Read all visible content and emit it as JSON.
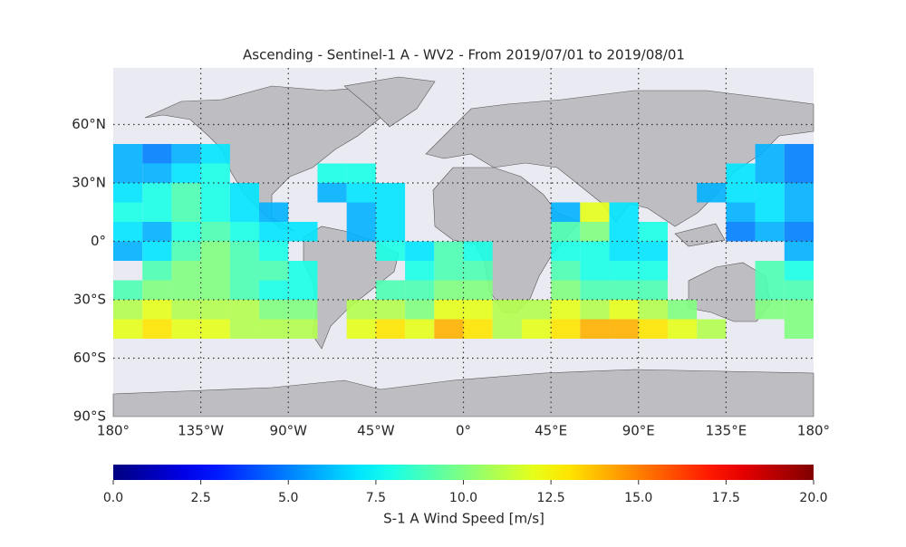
{
  "chart_data": {
    "type": "heatmap",
    "title": "Ascending - Sentinel-1 A - WV2 - From 2019/07/01 to 2019/08/01",
    "colorbar_label": "S-1 A Wind Speed [m/s]",
    "colormap": "jet",
    "clim": [
      0,
      20
    ],
    "cticks": [
      {
        "value": 0,
        "label": "0.0"
      },
      {
        "value": 2.5,
        "label": "2.5"
      },
      {
        "value": 5,
        "label": "5.0"
      },
      {
        "value": 7.5,
        "label": "7.5"
      },
      {
        "value": 10,
        "label": "10.0"
      },
      {
        "value": 12.5,
        "label": "12.5"
      },
      {
        "value": 15,
        "label": "15.0"
      },
      {
        "value": 17.5,
        "label": "17.5"
      },
      {
        "value": 20,
        "label": "20.0"
      }
    ],
    "xlim": [
      -180,
      180
    ],
    "ylim": [
      -90,
      90
    ],
    "xticks": [
      {
        "value": -180,
        "label": "180°"
      },
      {
        "value": -135,
        "label": "135°W"
      },
      {
        "value": -90,
        "label": "90°W"
      },
      {
        "value": -45,
        "label": "45°W"
      },
      {
        "value": 0,
        "label": "0°"
      },
      {
        "value": 45,
        "label": "45°E"
      },
      {
        "value": 90,
        "label": "90°E"
      },
      {
        "value": 135,
        "label": "135°E"
      },
      {
        "value": 180,
        "label": "180°"
      }
    ],
    "yticks": [
      {
        "value": -90,
        "label": "90°S"
      },
      {
        "value": -60,
        "label": "60°S"
      },
      {
        "value": -30,
        "label": "30°S"
      },
      {
        "value": 0,
        "label": "0°"
      },
      {
        "value": 30,
        "label": "30°N"
      },
      {
        "value": 60,
        "label": "60°N"
      }
    ],
    "grid": true,
    "xbins": [
      -180,
      -165,
      -150,
      -135,
      -120,
      -105,
      -90,
      -75,
      -60,
      -45,
      -30,
      -15,
      0,
      15,
      30,
      45,
      60,
      75,
      90,
      105,
      120,
      135,
      150,
      165,
      180
    ],
    "ybins": [
      50,
      40,
      30,
      20,
      10,
      0,
      -10,
      -20,
      -30,
      -40,
      -50
    ],
    "values": [
      [
        6,
        5,
        6,
        7,
        null,
        null,
        null,
        null,
        null,
        null,
        null,
        null,
        null,
        null,
        null,
        null,
        null,
        null,
        null,
        null,
        null,
        null,
        6,
        5
      ],
      [
        6,
        6,
        7,
        8,
        null,
        null,
        null,
        8,
        8,
        null,
        null,
        null,
        null,
        null,
        null,
        null,
        null,
        null,
        null,
        null,
        null,
        7,
        6,
        5
      ],
      [
        7,
        8,
        9,
        8,
        7,
        null,
        null,
        6,
        7,
        7,
        null,
        null,
        null,
        null,
        null,
        null,
        null,
        null,
        null,
        null,
        6,
        7,
        7,
        6
      ],
      [
        8,
        8,
        9,
        8,
        7,
        6,
        null,
        null,
        6,
        7,
        null,
        null,
        null,
        null,
        null,
        6,
        12,
        7,
        null,
        null,
        null,
        6,
        7,
        6
      ],
      [
        7,
        6,
        8,
        9,
        8,
        7,
        7,
        null,
        6,
        7,
        null,
        null,
        null,
        null,
        null,
        9,
        10,
        7,
        8,
        null,
        null,
        5,
        6,
        5
      ],
      [
        6,
        7,
        9,
        10,
        9,
        8,
        null,
        null,
        null,
        8,
        7,
        9,
        8,
        null,
        null,
        8,
        8,
        7,
        7,
        null,
        null,
        null,
        null,
        6
      ],
      [
        null,
        9,
        10,
        10,
        9,
        9,
        8,
        null,
        null,
        null,
        8,
        9,
        9,
        null,
        null,
        9,
        8,
        8,
        8,
        null,
        null,
        null,
        9,
        8
      ],
      [
        9,
        10,
        10,
        10,
        9,
        8,
        8,
        null,
        null,
        9,
        9,
        10,
        10,
        null,
        null,
        10,
        9,
        9,
        9,
        null,
        null,
        null,
        9,
        9
      ],
      [
        11,
        12,
        11,
        11,
        11,
        10,
        10,
        null,
        11,
        11,
        10,
        12,
        12,
        11,
        11,
        12,
        11,
        12,
        11,
        10,
        null,
        null,
        10,
        10
      ],
      [
        12,
        13,
        12,
        12,
        11,
        11,
        11,
        null,
        12,
        13,
        12,
        14,
        13,
        11,
        12,
        13,
        14,
        14,
        13,
        12,
        11,
        null,
        null,
        10
      ]
    ]
  }
}
